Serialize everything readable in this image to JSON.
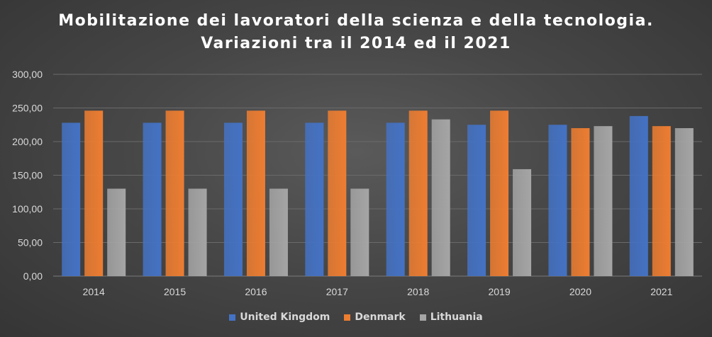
{
  "chart_data": {
    "type": "bar",
    "title": "Mobilitazione dei lavoratori della scienza e della tecnologia. Variazioni tra il 2014 ed il 2021",
    "title_lines": [
      "Mobilitazione dei lavoratori della scienza e della tecnologia.",
      "Variazioni tra il 2014 ed il 2021"
    ],
    "categories": [
      "2014",
      "2015",
      "2016",
      "2017",
      "2018",
      "2019",
      "2020",
      "2021"
    ],
    "series": [
      {
        "name": "United Kingdom",
        "color": "#4472c4",
        "values": [
          228,
          228,
          228,
          228,
          228,
          225,
          225,
          238
        ]
      },
      {
        "name": "Denmark",
        "color": "#ed7d31",
        "values": [
          246,
          246,
          246,
          246,
          246,
          246,
          220,
          223
        ]
      },
      {
        "name": "Lithuania",
        "color": "#a5a5a5",
        "values": [
          130,
          130,
          130,
          130,
          233,
          159,
          223,
          220
        ]
      }
    ],
    "yticks": [
      "0,00",
      "50,00",
      "100,00",
      "150,00",
      "200,00",
      "250,00",
      "300,00"
    ],
    "ylim": [
      0,
      300
    ],
    "grid": true,
    "legend_position": "bottom"
  }
}
